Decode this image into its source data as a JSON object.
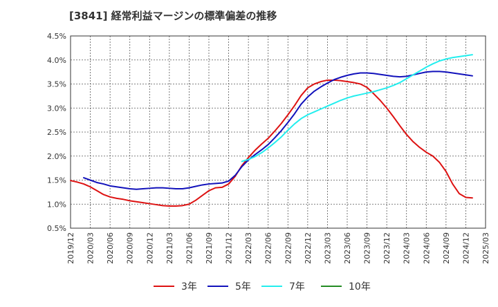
{
  "chart_data": {
    "type": "line",
    "title": "[3841]  経常利益マージンの標準偏差の推移",
    "xlabel": "",
    "ylabel": "",
    "ylim": [
      0.5,
      4.5
    ],
    "y_ticks": [
      "0.5%",
      "1.0%",
      "1.5%",
      "2.0%",
      "2.5%",
      "3.0%",
      "3.5%",
      "4.0%",
      "4.5%"
    ],
    "x_ticks": [
      "2019/12",
      "2020/03",
      "2020/06",
      "2020/09",
      "2020/12",
      "2021/03",
      "2021/06",
      "2021/09",
      "2021/12",
      "2022/03",
      "2022/06",
      "2022/09",
      "2022/12",
      "2023/03",
      "2023/06",
      "2023/09",
      "2023/12",
      "2024/03",
      "2024/06",
      "2024/09",
      "2024/12",
      "2025/03"
    ],
    "grid": true,
    "legend_position": "bottom",
    "series": [
      {
        "name": "3年",
        "color": "#dd1111",
        "points": [
          [
            "2019/12",
            1.49
          ],
          [
            "2020/01",
            1.46
          ],
          [
            "2020/02",
            1.42
          ],
          [
            "2020/03",
            1.36
          ],
          [
            "2020/04",
            1.28
          ],
          [
            "2020/05",
            1.2
          ],
          [
            "2020/06",
            1.15
          ],
          [
            "2020/07",
            1.12
          ],
          [
            "2020/08",
            1.1
          ],
          [
            "2020/09",
            1.07
          ],
          [
            "2020/10",
            1.05
          ],
          [
            "2020/11",
            1.03
          ],
          [
            "2020/12",
            1.01
          ],
          [
            "2021/01",
            0.99
          ],
          [
            "2021/02",
            0.97
          ],
          [
            "2021/03",
            0.96
          ],
          [
            "2021/04",
            0.96
          ],
          [
            "2021/05",
            0.97
          ],
          [
            "2021/06",
            1.0
          ],
          [
            "2021/07",
            1.08
          ],
          [
            "2021/08",
            1.18
          ],
          [
            "2021/09",
            1.28
          ],
          [
            "2021/10",
            1.34
          ],
          [
            "2021/11",
            1.35
          ],
          [
            "2021/12",
            1.42
          ],
          [
            "2022/01",
            1.58
          ],
          [
            "2022/02",
            1.8
          ],
          [
            "2022/03",
            1.97
          ],
          [
            "2022/04",
            2.12
          ],
          [
            "2022/05",
            2.25
          ],
          [
            "2022/06",
            2.37
          ],
          [
            "2022/07",
            2.52
          ],
          [
            "2022/08",
            2.68
          ],
          [
            "2022/09",
            2.86
          ],
          [
            "2022/10",
            3.05
          ],
          [
            "2022/11",
            3.26
          ],
          [
            "2022/12",
            3.42
          ],
          [
            "2023/01",
            3.5
          ],
          [
            "2023/02",
            3.55
          ],
          [
            "2023/03",
            3.58
          ],
          [
            "2023/04",
            3.58
          ],
          [
            "2023/05",
            3.57
          ],
          [
            "2023/06",
            3.55
          ],
          [
            "2023/07",
            3.53
          ],
          [
            "2023/08",
            3.5
          ],
          [
            "2023/09",
            3.43
          ],
          [
            "2023/10",
            3.3
          ],
          [
            "2023/11",
            3.16
          ],
          [
            "2023/12",
            3.0
          ],
          [
            "2024/01",
            2.82
          ],
          [
            "2024/02",
            2.63
          ],
          [
            "2024/03",
            2.45
          ],
          [
            "2024/04",
            2.3
          ],
          [
            "2024/05",
            2.18
          ],
          [
            "2024/06",
            2.08
          ],
          [
            "2024/07",
            2.0
          ],
          [
            "2024/08",
            1.87
          ],
          [
            "2024/09",
            1.68
          ],
          [
            "2024/10",
            1.42
          ],
          [
            "2024/11",
            1.22
          ],
          [
            "2024/12",
            1.14
          ],
          [
            "2025/01",
            1.13
          ]
        ]
      },
      {
        "name": "5年",
        "color": "#1111bb",
        "points": [
          [
            "2020/02",
            1.55
          ],
          [
            "2020/03",
            1.5
          ],
          [
            "2020/04",
            1.45
          ],
          [
            "2020/05",
            1.42
          ],
          [
            "2020/06",
            1.38
          ],
          [
            "2020/07",
            1.36
          ],
          [
            "2020/08",
            1.34
          ],
          [
            "2020/09",
            1.32
          ],
          [
            "2020/10",
            1.31
          ],
          [
            "2020/11",
            1.32
          ],
          [
            "2020/12",
            1.33
          ],
          [
            "2021/01",
            1.34
          ],
          [
            "2021/02",
            1.34
          ],
          [
            "2021/03",
            1.33
          ],
          [
            "2021/04",
            1.32
          ],
          [
            "2021/05",
            1.32
          ],
          [
            "2021/06",
            1.34
          ],
          [
            "2021/07",
            1.37
          ],
          [
            "2021/08",
            1.4
          ],
          [
            "2021/09",
            1.42
          ],
          [
            "2021/10",
            1.43
          ],
          [
            "2021/11",
            1.44
          ],
          [
            "2021/12",
            1.48
          ],
          [
            "2022/01",
            1.6
          ],
          [
            "2022/02",
            1.78
          ],
          [
            "2022/03",
            1.92
          ],
          [
            "2022/04",
            2.03
          ],
          [
            "2022/05",
            2.13
          ],
          [
            "2022/06",
            2.24
          ],
          [
            "2022/07",
            2.38
          ],
          [
            "2022/08",
            2.53
          ],
          [
            "2022/09",
            2.7
          ],
          [
            "2022/10",
            2.88
          ],
          [
            "2022/11",
            3.08
          ],
          [
            "2022/12",
            3.23
          ],
          [
            "2023/01",
            3.35
          ],
          [
            "2023/02",
            3.44
          ],
          [
            "2023/03",
            3.52
          ],
          [
            "2023/04",
            3.59
          ],
          [
            "2023/05",
            3.64
          ],
          [
            "2023/06",
            3.68
          ],
          [
            "2023/07",
            3.71
          ],
          [
            "2023/08",
            3.73
          ],
          [
            "2023/09",
            3.73
          ],
          [
            "2023/10",
            3.72
          ],
          [
            "2023/11",
            3.7
          ],
          [
            "2023/12",
            3.68
          ],
          [
            "2024/01",
            3.66
          ],
          [
            "2024/02",
            3.65
          ],
          [
            "2024/03",
            3.66
          ],
          [
            "2024/04",
            3.69
          ],
          [
            "2024/05",
            3.72
          ],
          [
            "2024/06",
            3.75
          ],
          [
            "2024/07",
            3.76
          ],
          [
            "2024/08",
            3.76
          ],
          [
            "2024/09",
            3.75
          ],
          [
            "2024/10",
            3.73
          ],
          [
            "2024/11",
            3.71
          ],
          [
            "2024/12",
            3.69
          ],
          [
            "2025/01",
            3.67
          ]
        ]
      },
      {
        "name": "7年",
        "color": "#22eeee",
        "points": [
          [
            "2022/02",
            1.89
          ],
          [
            "2022/03",
            1.93
          ],
          [
            "2022/04",
            1.99
          ],
          [
            "2022/05",
            2.07
          ],
          [
            "2022/06",
            2.17
          ],
          [
            "2022/07",
            2.28
          ],
          [
            "2022/08",
            2.4
          ],
          [
            "2022/09",
            2.54
          ],
          [
            "2022/10",
            2.67
          ],
          [
            "2022/11",
            2.78
          ],
          [
            "2022/12",
            2.86
          ],
          [
            "2023/01",
            2.92
          ],
          [
            "2023/02",
            2.98
          ],
          [
            "2023/03",
            3.04
          ],
          [
            "2023/04",
            3.1
          ],
          [
            "2023/05",
            3.16
          ],
          [
            "2023/06",
            3.21
          ],
          [
            "2023/07",
            3.25
          ],
          [
            "2023/08",
            3.28
          ],
          [
            "2023/09",
            3.31
          ],
          [
            "2023/10",
            3.34
          ],
          [
            "2023/11",
            3.38
          ],
          [
            "2023/12",
            3.42
          ],
          [
            "2024/01",
            3.47
          ],
          [
            "2024/02",
            3.53
          ],
          [
            "2024/03",
            3.61
          ],
          [
            "2024/04",
            3.69
          ],
          [
            "2024/05",
            3.77
          ],
          [
            "2024/06",
            3.85
          ],
          [
            "2024/07",
            3.92
          ],
          [
            "2024/08",
            3.98
          ],
          [
            "2024/09",
            4.02
          ],
          [
            "2024/10",
            4.05
          ],
          [
            "2024/11",
            4.07
          ],
          [
            "2024/12",
            4.09
          ],
          [
            "2025/01",
            4.11
          ]
        ]
      },
      {
        "name": "10年",
        "color": "#228b22",
        "points": []
      }
    ]
  }
}
